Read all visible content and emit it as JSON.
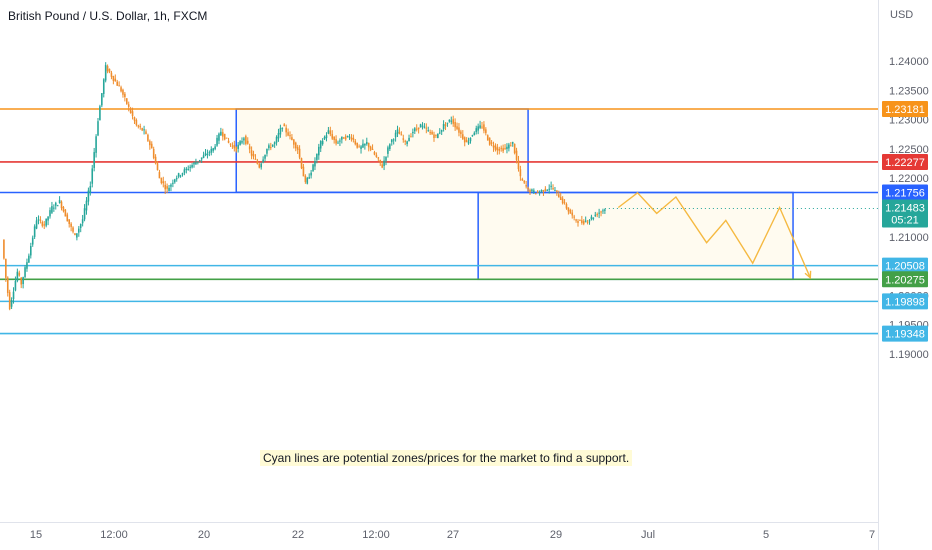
{
  "header": {
    "symbol": "British Pound / U.S. Dollar, 1h, FXCM"
  },
  "price_axis": {
    "currency": "USD",
    "ticks": [
      "1.24000",
      "1.23500",
      "1.23000",
      "1.22500",
      "1.22000",
      "1.21000",
      "1.20000",
      "1.19500",
      "1.19000"
    ]
  },
  "time_axis": {
    "ticks": [
      "15",
      "12:00",
      "20",
      "22",
      "12:00",
      "27",
      "29",
      "Jul",
      "5",
      "7"
    ]
  },
  "last_price": {
    "value": "1.21483",
    "countdown": "05:21",
    "color": "#26a69a"
  },
  "annotation": "Cyan lines are potential zones/prices for the market to find a support.",
  "colors": {
    "up": "#26a69a",
    "down": "#ef8d2d",
    "orange": "#f7931a",
    "red": "#e53935",
    "blue": "#2962ff",
    "cyan": "#41b6e6",
    "green": "#43a047",
    "projection": "#f5b941",
    "zone_fill": "#fffbf0"
  },
  "chart_data": {
    "type": "candlestick",
    "title": "British Pound / U.S. Dollar, 1h, FXCM",
    "y_axis_label": "USD",
    "ylim": [
      1.1895,
      1.2445
    ],
    "x_ticks": [
      "15",
      "12:00",
      "20",
      "22",
      "12:00",
      "27",
      "29",
      "Jul",
      "5",
      "7"
    ],
    "y_ticks": [
      1.24,
      1.235,
      1.23,
      1.225,
      1.22,
      1.21,
      1.2,
      1.195,
      1.19
    ],
    "price_trace": [
      [
        0,
        1.2095
      ],
      [
        2,
        1.203
      ],
      [
        4,
        1.198
      ],
      [
        6,
        1.201
      ],
      [
        8,
        1.204
      ],
      [
        10,
        1.202
      ],
      [
        14,
        1.207
      ],
      [
        18,
        1.213
      ],
      [
        22,
        1.212
      ],
      [
        26,
        1.215
      ],
      [
        30,
        1.216
      ],
      [
        34,
        1.213
      ],
      [
        38,
        1.21
      ],
      [
        42,
        1.213
      ],
      [
        46,
        1.219
      ],
      [
        50,
        1.23
      ],
      [
        54,
        1.239
      ],
      [
        58,
        1.237
      ],
      [
        62,
        1.235
      ],
      [
        66,
        1.232
      ],
      [
        70,
        1.229
      ],
      [
        74,
        1.228
      ],
      [
        78,
        1.225
      ],
      [
        82,
        1.22
      ],
      [
        86,
        1.218
      ],
      [
        90,
        1.22
      ],
      [
        94,
        1.221
      ],
      [
        98,
        1.222
      ],
      [
        102,
        1.223
      ],
      [
        106,
        1.224
      ],
      [
        110,
        1.225
      ],
      [
        114,
        1.228
      ],
      [
        118,
        1.226
      ],
      [
        122,
        1.225
      ],
      [
        126,
        1.227
      ],
      [
        130,
        1.224
      ],
      [
        134,
        1.222
      ],
      [
        138,
        1.225
      ],
      [
        142,
        1.226
      ],
      [
        146,
        1.229
      ],
      [
        150,
        1.227
      ],
      [
        154,
        1.225
      ],
      [
        158,
        1.219
      ],
      [
        162,
        1.222
      ],
      [
        166,
        1.226
      ],
      [
        170,
        1.228
      ],
      [
        174,
        1.226
      ],
      [
        178,
        1.227
      ],
      [
        182,
        1.227
      ],
      [
        186,
        1.225
      ],
      [
        190,
        1.226
      ],
      [
        194,
        1.224
      ],
      [
        198,
        1.222
      ],
      [
        202,
        1.226
      ],
      [
        206,
        1.228
      ],
      [
        210,
        1.226
      ],
      [
        214,
        1.228
      ],
      [
        218,
        1.229
      ],
      [
        222,
        1.228
      ],
      [
        226,
        1.227
      ],
      [
        230,
        1.229
      ],
      [
        234,
        1.23
      ],
      [
        238,
        1.228
      ],
      [
        242,
        1.226
      ],
      [
        246,
        1.228
      ],
      [
        250,
        1.229
      ],
      [
        254,
        1.226
      ],
      [
        258,
        1.225
      ],
      [
        262,
        1.225
      ],
      [
        266,
        1.226
      ],
      [
        270,
        1.22
      ],
      [
        274,
        1.218
      ],
      [
        278,
        1.2175
      ],
      [
        282,
        1.218
      ],
      [
        286,
        1.2185
      ],
      [
        290,
        1.217
      ],
      [
        294,
        1.215
      ],
      [
        298,
        1.213
      ],
      [
        302,
        1.2125
      ],
      [
        306,
        1.213
      ],
      [
        310,
        1.214
      ],
      [
        314,
        1.2148
      ]
    ],
    "horizontal_levels": [
      {
        "price": 1.23181,
        "color": "orange",
        "label": "1.23181"
      },
      {
        "price": 1.22277,
        "color": "red",
        "label": "1.22277"
      },
      {
        "price": 1.21756,
        "color": "blue",
        "label": "1.21756"
      },
      {
        "price": 1.20508,
        "color": "cyan",
        "label": "1.20508"
      },
      {
        "price": 1.20275,
        "color": "green",
        "label": "1.20275"
      },
      {
        "price": 1.19898,
        "color": "cyan",
        "label": "1.19898"
      },
      {
        "price": 1.19348,
        "color": "cyan",
        "label": "1.19348"
      }
    ],
    "zones": [
      {
        "price_top": 1.23181,
        "price_bottom": 1.2176,
        "bar_start": 122,
        "bar_end": 274
      },
      {
        "price_top": 1.21756,
        "price_bottom": 1.20275,
        "bar_start": 248,
        "bar_end": 412
      }
    ],
    "projection_path": [
      [
        321,
        1.215
      ],
      [
        331,
        1.2175
      ],
      [
        341,
        1.214
      ],
      [
        351,
        1.2168
      ],
      [
        367,
        1.209
      ],
      [
        377,
        1.2128
      ],
      [
        391,
        1.2055
      ],
      [
        405,
        1.215
      ],
      [
        421,
        1.203
      ]
    ]
  }
}
